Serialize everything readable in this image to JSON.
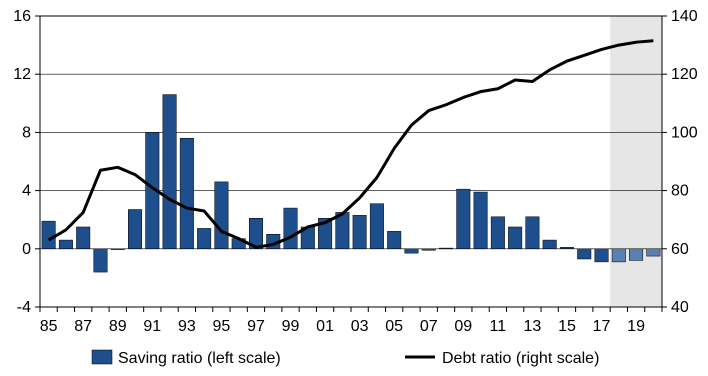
{
  "colors": {
    "bar": "#1f4e8c",
    "bar_forecast": "#5b7fb0",
    "line": "#000000",
    "forecast_shade": "#e6e6e6",
    "gridline": "#000000"
  },
  "chart_data": {
    "type": "bar",
    "title": "",
    "xlabel": "",
    "ylabel": "",
    "grid": true,
    "legend_position": "bottom",
    "x": [
      1985,
      1986,
      1987,
      1988,
      1989,
      1990,
      1991,
      1992,
      1993,
      1994,
      1995,
      1996,
      1997,
      1998,
      1999,
      2000,
      2001,
      2002,
      2003,
      2004,
      2005,
      2006,
      2007,
      2008,
      2009,
      2010,
      2011,
      2012,
      2013,
      2014,
      2015,
      2016,
      2017,
      2018,
      2019,
      2020
    ],
    "x_tick_labels": [
      "85",
      "87",
      "89",
      "91",
      "93",
      "95",
      "97",
      "99",
      "01",
      "03",
      "05",
      "07",
      "09",
      "11",
      "13",
      "15",
      "17",
      "19"
    ],
    "x_tick_years": [
      1985,
      1987,
      1989,
      1991,
      1993,
      1995,
      1997,
      1999,
      2001,
      2003,
      2005,
      2007,
      2009,
      2011,
      2013,
      2015,
      2017,
      2019
    ],
    "forecast_start": 2018,
    "left_axis": {
      "ylim": [
        -4,
        16
      ],
      "ticks": [
        -4,
        0,
        4,
        8,
        12,
        16
      ]
    },
    "right_axis": {
      "ylim": [
        40,
        140
      ],
      "ticks": [
        40,
        60,
        80,
        100,
        120,
        140
      ]
    },
    "series": [
      {
        "name": "Saving ratio (left scale)",
        "type": "bar",
        "axis": "left",
        "values": [
          1.9,
          0.6,
          1.5,
          -1.6,
          0.0,
          2.7,
          8.0,
          10.6,
          7.6,
          1.4,
          4.6,
          0.7,
          2.1,
          1.0,
          2.8,
          1.5,
          2.1,
          2.5,
          2.3,
          3.1,
          1.2,
          -0.3,
          -0.1,
          0.05,
          4.1,
          3.9,
          2.2,
          1.5,
          2.2,
          0.6,
          0.1,
          -0.7,
          -0.9,
          -0.9,
          -0.8,
          -0.5
        ]
      },
      {
        "name": "Debt ratio (right scale)",
        "type": "line",
        "axis": "right",
        "values": [
          63.0,
          66.5,
          72.5,
          87.0,
          88.0,
          85.5,
          81.0,
          77.0,
          74.0,
          73.0,
          66.0,
          63.5,
          60.5,
          61.5,
          64.0,
          67.5,
          69.0,
          72.0,
          77.5,
          84.5,
          94.5,
          102.5,
          107.5,
          109.5,
          112.0,
          114.0,
          115.0,
          118.0,
          117.5,
          121.5,
          124.5,
          126.5,
          128.5,
          130.0,
          131.0,
          131.5
        ]
      }
    ]
  }
}
